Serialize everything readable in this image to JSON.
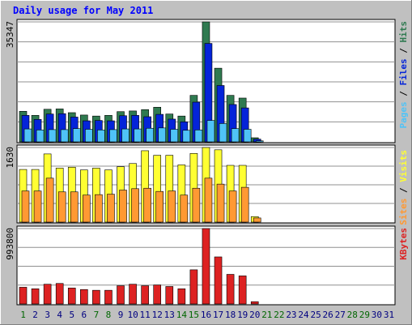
{
  "chart_data": {
    "type": "bar",
    "title": "Daily usage for May 2011",
    "colors": {
      "background": "#c0c0c0",
      "plot_background": "#ffffff",
      "title": "#0000ff",
      "hits": "#2f7a50",
      "files": "#0424d9",
      "pages": "#4fc3f7",
      "visits": "#ffff33",
      "sites": "#ff9933",
      "kbytes": "#dd2222",
      "weekend_label": "#006600",
      "weekday_label": "#000080"
    },
    "categories": [
      "1",
      "2",
      "3",
      "4",
      "5",
      "6",
      "7",
      "8",
      "9",
      "10",
      "11",
      "12",
      "13",
      "14",
      "15",
      "16",
      "17",
      "18",
      "19",
      "20",
      "21",
      "22",
      "23",
      "24",
      "25",
      "26",
      "27",
      "28",
      "29",
      "30",
      "31"
    ],
    "weekend_days": [
      "1",
      "7",
      "8",
      "14",
      "15",
      "21",
      "22",
      "28",
      "29"
    ],
    "panels": [
      {
        "id": "requests",
        "max_label": "35347",
        "ymax": 35347,
        "legend": [
          {
            "text": "Pages",
            "color": "#4fc3f7"
          },
          {
            "text": " / ",
            "color": "#000000"
          },
          {
            "text": "Files",
            "color": "#0424d9"
          },
          {
            "text": " / ",
            "color": "#000000"
          },
          {
            "text": "Hits",
            "color": "#2f7a50"
          }
        ],
        "series": [
          {
            "name": "Hits",
            "color": "#2f7a50",
            "values": [
              9000,
              7800,
              9600,
              9700,
              8600,
              7900,
              7600,
              7800,
              8900,
              9100,
              9500,
              10200,
              8200,
              7600,
              13700,
              35347,
              21700,
              13700,
              12900,
              1200,
              0,
              0,
              0,
              0,
              0,
              0,
              0,
              0,
              0,
              0,
              0
            ]
          },
          {
            "name": "Files",
            "color": "#0424d9",
            "values": [
              7800,
              6600,
              8200,
              8300,
              7300,
              6200,
              6300,
              6200,
              7700,
              7800,
              7400,
              8100,
              6700,
              5900,
              11700,
              29000,
              16600,
              11000,
              10000,
              800,
              0,
              0,
              0,
              0,
              0,
              0,
              0,
              0,
              0,
              0,
              0
            ]
          },
          {
            "name": "Pages",
            "color": "#4fc3f7",
            "values": [
              3800,
              3500,
              3600,
              3600,
              3900,
              3700,
              3500,
              3600,
              3800,
              3800,
              4000,
              4100,
              3700,
              3400,
              3500,
              6300,
              5400,
              3900,
              3700,
              300,
              0,
              0,
              0,
              0,
              0,
              0,
              0,
              0,
              0,
              0,
              0
            ]
          }
        ]
      },
      {
        "id": "visitors",
        "max_label": "1630",
        "ymax": 1630,
        "legend": [
          {
            "text": "Sites",
            "color": "#ff9933"
          },
          {
            "text": " / ",
            "color": "#000000"
          },
          {
            "text": "Visits",
            "color": "#ffff33"
          }
        ],
        "series": [
          {
            "name": "Visits",
            "color": "#ffff33",
            "values": [
              1150,
              1150,
              1490,
              1180,
              1200,
              1140,
              1180,
              1140,
              1210,
              1280,
              1560,
              1460,
              1460,
              1250,
              1500,
              1630,
              1580,
              1240,
              1240,
              120,
              0,
              0,
              0,
              0,
              0,
              0,
              0,
              0,
              0,
              0,
              0
            ]
          },
          {
            "name": "Sites",
            "color": "#ff9933",
            "values": [
              680,
              680,
              960,
              660,
              660,
              590,
              600,
              610,
              700,
              730,
              740,
              670,
              680,
              590,
              740,
              960,
              830,
              680,
              760,
              90,
              0,
              0,
              0,
              0,
              0,
              0,
              0,
              0,
              0,
              0,
              0
            ]
          }
        ]
      },
      {
        "id": "kbytes",
        "max_label": "993800",
        "ymax": 993800,
        "legend": [
          {
            "text": "KBytes",
            "color": "#dd2222"
          }
        ],
        "series": [
          {
            "name": "KBytes",
            "color": "#dd2222",
            "values": [
              220000,
              200000,
              260000,
              270000,
              210000,
              190000,
              180000,
              180000,
              240000,
              260000,
              240000,
              250000,
              230000,
              200000,
              450000,
              993800,
              620000,
              390000,
              370000,
              30000,
              0,
              0,
              0,
              0,
              0,
              0,
              0,
              0,
              0,
              0,
              0
            ]
          }
        ]
      }
    ]
  }
}
